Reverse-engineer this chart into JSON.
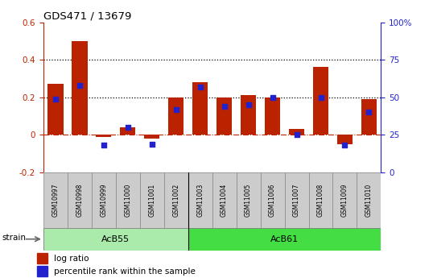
{
  "title": "GDS471 / 13679",
  "samples": [
    "GSM10997",
    "GSM10998",
    "GSM10999",
    "GSM11000",
    "GSM11001",
    "GSM11002",
    "GSM11003",
    "GSM11004",
    "GSM11005",
    "GSM11006",
    "GSM11007",
    "GSM11008",
    "GSM11009",
    "GSM11010"
  ],
  "log_ratio": [
    0.27,
    0.5,
    -0.01,
    0.04,
    -0.02,
    0.2,
    0.28,
    0.2,
    0.21,
    0.2,
    0.03,
    0.36,
    -0.05,
    0.19
  ],
  "percentile_rank": [
    49,
    58,
    18,
    30,
    19,
    42,
    57,
    44,
    45,
    50,
    25,
    50,
    18,
    40
  ],
  "groups": [
    {
      "label": "AcB55",
      "start": 0,
      "end": 5,
      "color": "#aaeaaa"
    },
    {
      "label": "AcB61",
      "start": 6,
      "end": 13,
      "color": "#44dd44"
    }
  ],
  "bar_color": "#bb2200",
  "dot_color": "#2222cc",
  "ylim_left": [
    -0.2,
    0.6
  ],
  "ylim_right": [
    0,
    100
  ],
  "yticks_left": [
    -0.2,
    0.0,
    0.2,
    0.4,
    0.6
  ],
  "yticks_right": [
    0,
    25,
    50,
    75,
    100
  ],
  "hlines": [
    0.4,
    0.2
  ],
  "zero_line": 0.0,
  "strain_label": "strain",
  "legend_bar": "log ratio",
  "legend_dot": "percentile rank within the sample",
  "sample_box_color": "#cccccc",
  "group_divider": 5.5
}
